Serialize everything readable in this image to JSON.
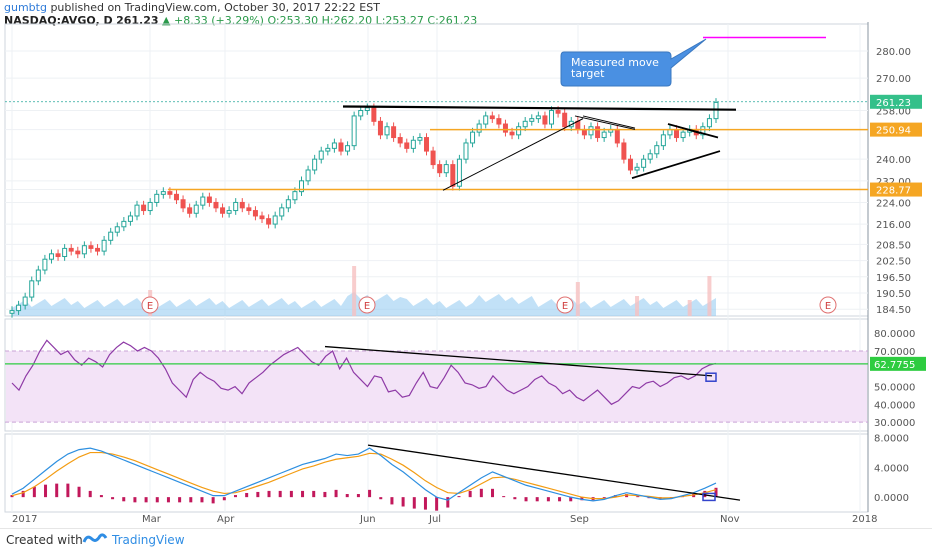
{
  "header": {
    "line1_author": "gumbtg",
    "line1_rest": "published on TradingView.com, October 30, 2017 22:22 EST",
    "symbol": "NASDAQ:AVGO, D",
    "last": "261.23",
    "change": "▲ +8.33 (+3.29%)",
    "ohlc": "O:253.30 H:262.20 L:253.27 C:261.23"
  },
  "footer": {
    "created_with": "Created with",
    "brand": "TradingView"
  },
  "annotation": {
    "callout_text": "Measured move target"
  },
  "colors": {
    "up": "#26a69a",
    "down": "#ef5350",
    "candle_up_fill": "#ffffff",
    "trendline": "#000000",
    "support": "#f5a623",
    "target": "#ff00ff",
    "rsi": "#8e3aa6",
    "rsi_band": "#f3e3f7",
    "rsi_line": "#2ecc40",
    "macd": "#2d8fe0",
    "signal": "#f39c12",
    "hist": "#c2185b",
    "volume": "#90c8f0",
    "callout": "#4a90e2"
  },
  "chart_data": [
    {
      "type": "line",
      "name": "price",
      "description_type": "candlestick",
      "xlabels": [
        "2017",
        "Mar",
        "Apr",
        "Jun",
        "Jul",
        "Sep",
        "Nov",
        "2018"
      ],
      "yticks": [
        "280.00",
        "270.00",
        "258.00",
        "250.94",
        "240.00",
        "232.00",
        "228.77",
        "224.00",
        "216.00",
        "208.50",
        "202.50",
        "196.50",
        "190.50",
        "184.50"
      ],
      "ylim": [
        182,
        290
      ],
      "last_price": "261.23",
      "levels": [
        {
          "label": "250.94",
          "value": 250.94,
          "kind": "resistance"
        },
        {
          "label": "228.77",
          "value": 228.77,
          "kind": "support"
        }
      ],
      "target_value": 285,
      "earnings_markers": [
        "E",
        "E",
        "E",
        "E"
      ],
      "closes": [
        184,
        186,
        189,
        195,
        199,
        203,
        205,
        204,
        207,
        206,
        205,
        208,
        207,
        206,
        210,
        213,
        215,
        217,
        219,
        223,
        221,
        224,
        227,
        228,
        227,
        225,
        222,
        220,
        223,
        226,
        224,
        222,
        220,
        221,
        224,
        222,
        221,
        219,
        218,
        216,
        219,
        222,
        225,
        228,
        232,
        236,
        240,
        243,
        244,
        246,
        243,
        245,
        256,
        258,
        259,
        254,
        249,
        252,
        248,
        246,
        244,
        247,
        248,
        243,
        238,
        235,
        238,
        230,
        240,
        246,
        250,
        253,
        256,
        255,
        253,
        250,
        249,
        252,
        254,
        255,
        256,
        253,
        258,
        257,
        252,
        254,
        251,
        249,
        252,
        248,
        250,
        251,
        246,
        240,
        236,
        237,
        240,
        242,
        245,
        249,
        251,
        248,
        250,
        251,
        249,
        252,
        255,
        261
      ]
    },
    {
      "type": "line",
      "name": "RSI",
      "yticks": [
        "80.0000",
        "70.0000",
        "62.7755",
        "50.0000",
        "40.0000",
        "30.0000"
      ],
      "ylim": [
        25,
        88
      ],
      "last_value": "62.7755",
      "band": [
        30,
        70
      ],
      "values": [
        52,
        48,
        56,
        62,
        70,
        76,
        72,
        68,
        70,
        65,
        62,
        66,
        64,
        61,
        68,
        72,
        75,
        73,
        70,
        72,
        70,
        66,
        60,
        52,
        48,
        44,
        54,
        58,
        55,
        53,
        49,
        48,
        50,
        46,
        52,
        55,
        58,
        62,
        65,
        68,
        70,
        72,
        68,
        64,
        62,
        67,
        70,
        60,
        66,
        58,
        54,
        50,
        56,
        55,
        47,
        48,
        44,
        45,
        52,
        58,
        50,
        49,
        55,
        62,
        58,
        52,
        51,
        49,
        50,
        56,
        52,
        48,
        46,
        48,
        50,
        54,
        56,
        52,
        50,
        46,
        48,
        44,
        42,
        45,
        48,
        44,
        40,
        42,
        46,
        50,
        49,
        52,
        53,
        50,
        52,
        55,
        56,
        54,
        56,
        60,
        62,
        63
      ]
    },
    {
      "type": "line",
      "name": "MACD",
      "yticks": [
        "8.0000",
        "4.0000",
        "0.0000"
      ],
      "ylim": [
        -2,
        8.5
      ],
      "series": [
        {
          "name": "macd",
          "values": [
            0.4,
            1.2,
            2.4,
            3.6,
            4.8,
            5.8,
            6.4,
            6.6,
            6.2,
            5.6,
            5.0,
            4.4,
            3.8,
            3.2,
            2.6,
            2.0,
            1.4,
            0.8,
            0.2,
            0.2,
            0.8,
            1.4,
            2.0,
            2.6,
            3.2,
            3.8,
            4.4,
            4.8,
            5.2,
            5.8,
            5.6,
            5.8,
            6.6,
            5.6,
            4.4,
            3.4,
            2.2,
            1.0,
            0.0,
            -0.4,
            0.6,
            1.6,
            2.6,
            3.4,
            2.8,
            2.2,
            1.6,
            1.2,
            0.8,
            0.4,
            0.0,
            -0.3,
            -0.5,
            -0.3,
            0.2,
            0.6,
            0.3,
            0.0,
            -0.3,
            -0.2,
            0.2,
            0.6,
            1.2,
            1.9
          ]
        },
        {
          "name": "signal",
          "values": [
            0.2,
            0.6,
            1.4,
            2.4,
            3.5,
            4.5,
            5.4,
            6.0,
            6.0,
            5.8,
            5.4,
            4.9,
            4.3,
            3.7,
            3.1,
            2.5,
            1.9,
            1.3,
            0.8,
            0.5,
            0.6,
            1.0,
            1.5,
            2.0,
            2.6,
            3.2,
            3.8,
            4.2,
            4.7,
            5.1,
            5.3,
            5.5,
            5.9,
            5.8,
            5.1,
            4.3,
            3.3,
            2.2,
            1.3,
            0.6,
            0.5,
            1.0,
            1.8,
            2.6,
            2.7,
            2.4,
            2.0,
            1.6,
            1.2,
            0.8,
            0.4,
            0.0,
            -0.2,
            -0.2,
            0.0,
            0.3,
            0.2,
            0.1,
            -0.1,
            -0.1,
            0.1,
            0.3,
            0.6,
            1.0
          ]
        }
      ]
    }
  ]
}
